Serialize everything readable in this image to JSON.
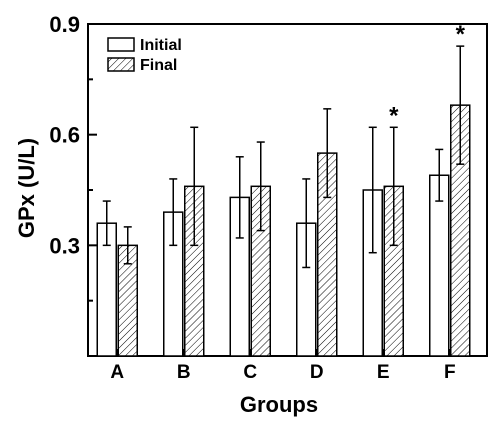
{
  "chart_data": {
    "type": "bar",
    "title": "",
    "xlabel": "Groups",
    "ylabel": "GPx (U/L)",
    "ylim": [
      0.0,
      0.9
    ],
    "yticks": [
      "0.3",
      "0.6",
      "0.9"
    ],
    "categories": [
      "A",
      "B",
      "C",
      "D",
      "E",
      "F"
    ],
    "series": [
      {
        "name": "Initial",
        "values": [
          0.36,
          0.39,
          0.43,
          0.36,
          0.45,
          0.49
        ],
        "errors": [
          0.06,
          0.09,
          0.11,
          0.12,
          0.17,
          0.07
        ],
        "pattern": "none"
      },
      {
        "name": "Final",
        "values": [
          0.3,
          0.46,
          0.46,
          0.55,
          0.46,
          0.68
        ],
        "errors": [
          0.05,
          0.16,
          0.12,
          0.12,
          0.16,
          0.16
        ],
        "pattern": "hatch"
      }
    ],
    "annotations": [
      {
        "category": "E",
        "series": "Final",
        "text": "*"
      },
      {
        "category": "F",
        "series": "Final",
        "text": "*"
      }
    ],
    "legend": "top-left",
    "grid": false
  }
}
